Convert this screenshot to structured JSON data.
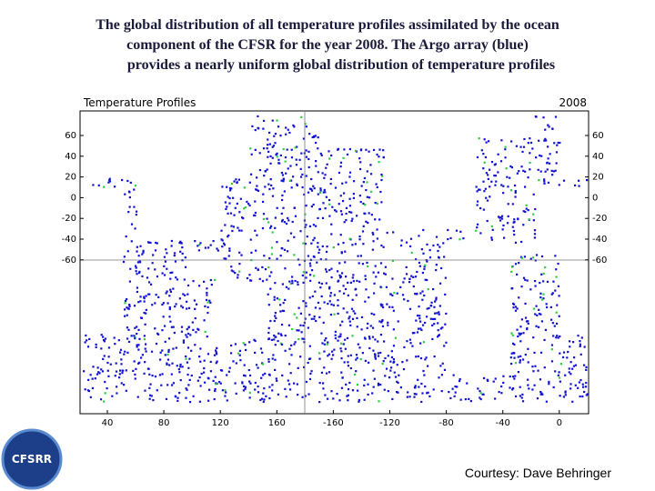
{
  "header": {
    "title_lines": [
      "The global distribution of all temperature profiles assimilated by the ocean",
      "component of the CFSR for the year 2008. The Argo array (blue)",
      "provides a nearly uniform global distribution of temperature profiles"
    ]
  },
  "map": {
    "title": "Temperature Profiles",
    "year": "2008",
    "lat_ticks": [
      60,
      40,
      20,
      0,
      -20,
      -40,
      -60
    ],
    "lon_ticks": [
      40,
      80,
      120,
      160,
      -160,
      -120,
      -80,
      -40,
      0
    ]
  },
  "logo": {
    "text": "CFSRR"
  },
  "footer": {
    "credit": "Courtesy: Dave Behringer"
  }
}
